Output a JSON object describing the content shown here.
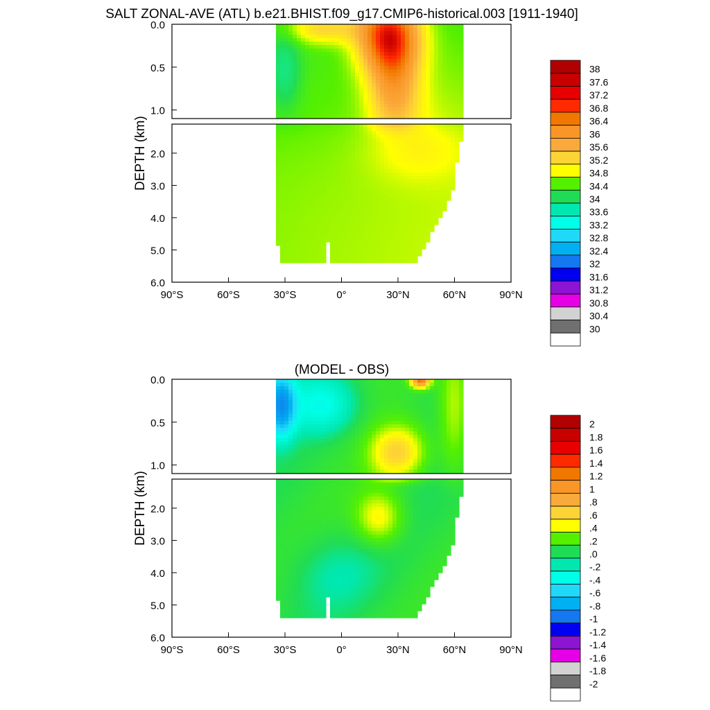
{
  "title": "SALT ZONAL-AVE (ATL) b.e21.BHIST.f09_g17.CMIP6-historical.003 [1911-1940]",
  "subtitle": "(MODEL - OBS)",
  "chart_data": [
    {
      "type": "heatmap",
      "name": "salinity",
      "title": "SALT ZONAL-AVE (ATL) b.e21.BHIST.f09_g17.CMIP6-historical.003 [1911-1940]",
      "ylabel": "DEPTH (km)",
      "x_ticks": [
        "90°S",
        "60°S",
        "30°S",
        "0°",
        "30°N",
        "60°N",
        "90°N"
      ],
      "x_tick_values": [
        -90,
        -60,
        -30,
        0,
        30,
        60,
        90
      ],
      "xlim": [
        -90,
        90
      ],
      "upper_y_ticks": [
        "0.0",
        "0.5",
        "1.0"
      ],
      "upper_y_tick_values": [
        0,
        0.5,
        1.0
      ],
      "lower_y_ticks": [
        "2.0",
        "3.0",
        "4.0",
        "5.0",
        "6.0"
      ],
      "lower_y_tick_values": [
        2,
        3,
        4,
        5,
        6
      ],
      "ylim_upper": [
        0,
        1.1
      ],
      "ylim_lower": [
        1.1,
        6.0
      ],
      "colorbar_labels": [
        "38",
        "37.6",
        "37.2",
        "36.8",
        "36.4",
        "36",
        "35.6",
        "35.2",
        "34.8",
        "34.4",
        "34",
        "33.6",
        "33.2",
        "32.8",
        "32.4",
        "32",
        "31.6",
        "31.2",
        "30.8",
        "30.4",
        "30"
      ],
      "colorbar_colors": [
        "#b00000",
        "#c80000",
        "#e80000",
        "#ff2a00",
        "#f07800",
        "#fa9628",
        "#faaa3a",
        "#fdd435",
        "#ffff00",
        "#55f000",
        "#20dc55",
        "#00e8b0",
        "#00ffe8",
        "#20d8f8",
        "#00b0f0",
        "#1478f0",
        "#0000f0",
        "#8c14d2",
        "#e600e6",
        "#d2d2d2",
        "#707070",
        "#ffffff"
      ],
      "field_color_stops": [
        {
          "value": 33.6,
          "color": "#00ffe8"
        },
        {
          "value": 34.4,
          "color": "#20dc55"
        },
        {
          "value": 34.8,
          "color": "#55f000"
        },
        {
          "value": 35.2,
          "color": "#ffff00"
        },
        {
          "value": 35.6,
          "color": "#fdd435"
        },
        {
          "value": 36.0,
          "color": "#faaa3a"
        },
        {
          "value": 36.4,
          "color": "#fa9628"
        },
        {
          "value": 36.8,
          "color": "#f07800"
        },
        {
          "value": 37.2,
          "color": "#ff2a00"
        },
        {
          "value": 37.6,
          "color": "#c80000"
        }
      ]
    },
    {
      "type": "heatmap",
      "name": "difference",
      "title": "(MODEL - OBS)",
      "ylabel": "DEPTH (km)",
      "x_ticks": [
        "90°S",
        "60°S",
        "30°S",
        "0°",
        "30°N",
        "60°N",
        "90°N"
      ],
      "x_tick_values": [
        -90,
        -60,
        -30,
        0,
        30,
        60,
        90
      ],
      "xlim": [
        -90,
        90
      ],
      "upper_y_ticks": [
        "0.0",
        "0.5",
        "1.0"
      ],
      "upper_y_tick_values": [
        0,
        0.5,
        1.0
      ],
      "lower_y_ticks": [
        "2.0",
        "3.0",
        "4.0",
        "5.0",
        "6.0"
      ],
      "lower_y_tick_values": [
        2,
        3,
        4,
        5,
        6
      ],
      "ylim_upper": [
        0,
        1.1
      ],
      "ylim_lower": [
        1.1,
        6.0
      ],
      "colorbar_labels": [
        "2",
        "1.8",
        "1.6",
        "1.4",
        "1.2",
        "1",
        ".8",
        ".6",
        ".4",
        ".2",
        ".0",
        "-.2",
        "-.4",
        "-.6",
        "-.8",
        "-1",
        "-1.2",
        "-1.4",
        "-1.6",
        "-1.8",
        "-2"
      ],
      "colorbar_colors": [
        "#b00000",
        "#c80000",
        "#e80000",
        "#ff2a00",
        "#f07800",
        "#fa9628",
        "#faaa3a",
        "#fdd435",
        "#ffff00",
        "#55f000",
        "#20dc55",
        "#00e8b0",
        "#00ffe8",
        "#20d8f8",
        "#00b0f0",
        "#1478f0",
        "#0000f0",
        "#8c14d2",
        "#e600e6",
        "#d2d2d2",
        "#707070",
        "#ffffff"
      ],
      "field_color_stops": [
        {
          "value": -1.0,
          "color": "#1478f0"
        },
        {
          "value": -0.6,
          "color": "#00b0f0"
        },
        {
          "value": -0.4,
          "color": "#20d8f8"
        },
        {
          "value": -0.2,
          "color": "#00ffe8"
        },
        {
          "value": 0.0,
          "color": "#00e8b0"
        },
        {
          "value": 0.1,
          "color": "#20dc55"
        },
        {
          "value": 0.3,
          "color": "#55f000"
        },
        {
          "value": 0.5,
          "color": "#ffff00"
        },
        {
          "value": 0.7,
          "color": "#fdd435"
        },
        {
          "value": 1.0,
          "color": "#faaa3a"
        },
        {
          "value": 1.3,
          "color": "#f07800"
        }
      ]
    }
  ]
}
